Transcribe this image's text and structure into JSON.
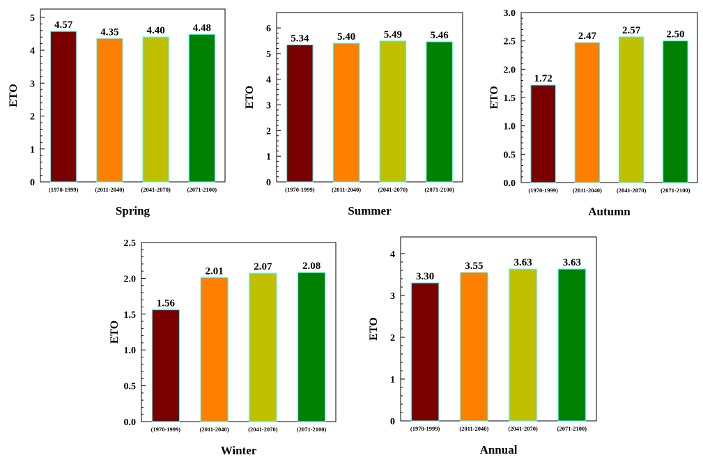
{
  "colors": {
    "bar_1": "#7a0000",
    "bar_2": "#ff8000",
    "bar_3": "#c0c000",
    "bar_4": "#008000",
    "bar_outline": "#33ffff",
    "axis": "#000000"
  },
  "chart_data": [
    {
      "type": "bar",
      "title": "Spring",
      "ylabel": "ETO",
      "categories": [
        "(1970-1999)",
        "(2011-2040)",
        "(2041-2070)",
        "(2071-2100)"
      ],
      "values": [
        4.57,
        4.35,
        4.4,
        4.48
      ],
      "value_labels": [
        "4.57",
        "4.35",
        "4.40",
        "4.48"
      ],
      "ylim": [
        0,
        5.25
      ],
      "yticks": [
        0,
        1,
        2,
        3,
        4,
        5
      ],
      "ytick_labels": [
        "0",
        "1",
        "2",
        "3",
        "4",
        "5"
      ],
      "grid": false
    },
    {
      "type": "bar",
      "title": "Summer",
      "ylabel": "ETO",
      "categories": [
        "(1970-1999)",
        "(2011-2040)",
        "(2041-2070)",
        "(2071-2100)"
      ],
      "values": [
        5.34,
        5.4,
        5.49,
        5.46
      ],
      "value_labels": [
        "5.34",
        "5.40",
        "5.49",
        "5.46"
      ],
      "ylim": [
        0,
        6.6
      ],
      "yticks": [
        0,
        1,
        2,
        3,
        4,
        5,
        6
      ],
      "ytick_labels": [
        "0",
        "1",
        "2",
        "3",
        "4",
        "5",
        "6"
      ],
      "grid": false
    },
    {
      "type": "bar",
      "title": "Autumn",
      "ylabel": "ETO",
      "categories": [
        "(1970-1999)",
        "(2011-2040)",
        "(2041-2070)",
        "(2071-2100)"
      ],
      "values": [
        1.72,
        2.47,
        2.57,
        2.5
      ],
      "value_labels": [
        "1.72",
        "2.47",
        "2.57",
        "2.50"
      ],
      "ylim": [
        0,
        3.0
      ],
      "yticks": [
        0,
        0.5,
        1,
        1.5,
        2,
        2.5,
        3
      ],
      "ytick_labels": [
        "0.0",
        "0.5",
        "1.0",
        "1.5",
        "2.0",
        "2.5",
        "3.0"
      ],
      "grid": false
    },
    {
      "type": "bar",
      "title": "Winter",
      "ylabel": "ETO",
      "categories": [
        "(1970-1999)",
        "(2011-2040)",
        "(2041-2070)",
        "(2071-2100)"
      ],
      "values": [
        1.56,
        2.01,
        2.07,
        2.08
      ],
      "value_labels": [
        "1.56",
        "2.01",
        "2.07",
        "2.08"
      ],
      "ylim": [
        0,
        2.5
      ],
      "yticks": [
        0,
        0.5,
        1,
        1.5,
        2,
        2.5
      ],
      "ytick_labels": [
        "0.0",
        "0.5",
        "1.0",
        "1.5",
        "2.0",
        "2.5"
      ],
      "grid": false
    },
    {
      "type": "bar",
      "title": "Annual",
      "ylabel": "ETO",
      "categories": [
        "(1970-1999)",
        "(2011-2040)",
        "(2041-2070)",
        "(2071-2100)"
      ],
      "values": [
        3.3,
        3.55,
        3.63,
        3.63
      ],
      "value_labels": [
        "3.30",
        "3.55",
        "3.63",
        "3.63"
      ],
      "ylim": [
        0,
        4.4
      ],
      "yticks": [
        0,
        1,
        2,
        3,
        4
      ],
      "ytick_labels": [
        "0",
        "1",
        "2",
        "3",
        "4"
      ],
      "grid": false
    }
  ]
}
